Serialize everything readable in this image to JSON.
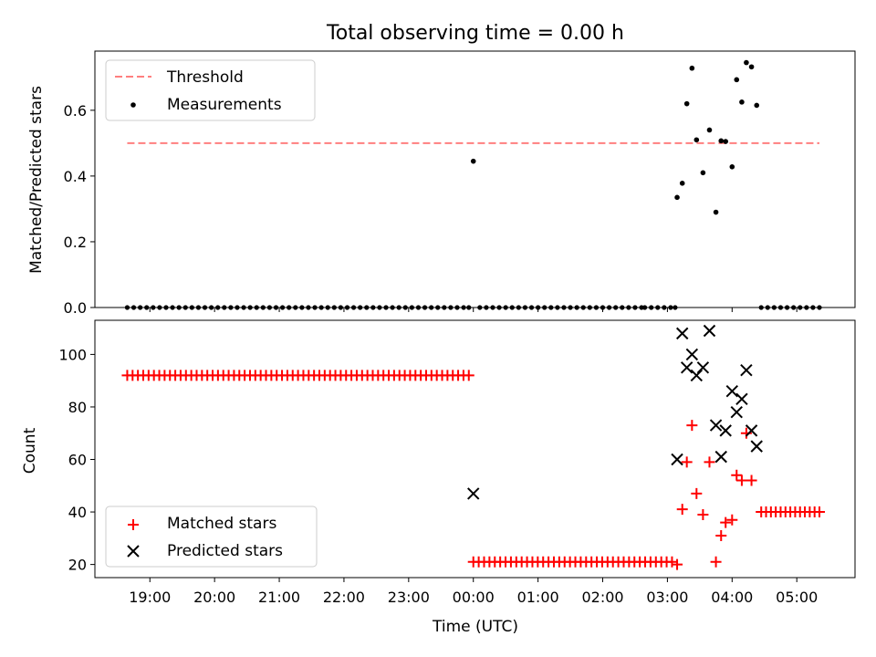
{
  "chart_data": [
    {
      "type": "scatter",
      "title": "Total observing time = 0.00 h",
      "xlabel": "",
      "ylabel": "Matched/Predicted stars",
      "xlim": [
        18.15,
        29.9
      ],
      "ylim": [
        0,
        0.78
      ],
      "yticks": [
        0.0,
        0.2,
        0.4,
        0.6
      ],
      "ytick_labels": [
        "0.0",
        "0.2",
        "0.4",
        "0.6"
      ],
      "legend_position": "upper left",
      "threshold": {
        "name": "Threshold",
        "value": 0.5,
        "x_start": 18.65,
        "x_end": 29.35,
        "color": "#ff7f7f"
      },
      "series": [
        {
          "name": "Measurements",
          "color": "#000000",
          "marker": "dot",
          "zero_x": [
            18.65,
            18.75,
            18.85,
            18.95,
            19.05,
            19.15,
            19.25,
            19.35,
            19.45,
            19.55,
            19.65,
            19.75,
            19.85,
            19.95,
            20.05,
            20.15,
            20.25,
            20.35,
            20.45,
            20.55,
            20.65,
            20.75,
            20.85,
            20.95,
            21.05,
            21.15,
            21.25,
            21.35,
            21.45,
            21.55,
            21.65,
            21.75,
            21.85,
            21.95,
            22.05,
            22.15,
            22.25,
            22.35,
            22.45,
            22.55,
            22.65,
            22.75,
            22.85,
            22.95,
            23.05,
            23.15,
            23.25,
            23.35,
            23.45,
            23.55,
            23.65,
            23.75,
            23.85,
            23.93,
            24.1,
            24.2,
            24.3,
            24.4,
            24.5,
            24.6,
            24.7,
            24.8,
            24.9,
            25.0,
            25.1,
            25.2,
            25.3,
            25.4,
            25.5,
            25.6,
            25.7,
            25.8,
            25.9,
            26.0,
            26.1,
            26.2,
            26.3,
            26.4,
            26.5,
            26.6,
            26.65,
            26.75,
            26.85,
            26.95,
            27.05,
            27.12,
            28.45,
            28.55,
            28.65,
            28.75,
            28.85,
            28.95,
            29.05,
            29.15,
            29.25,
            29.35
          ],
          "x": [
            24.0,
            27.15,
            27.23,
            27.3,
            27.38,
            27.45,
            27.55,
            27.65,
            27.75,
            27.83,
            27.9,
            28.0,
            28.07,
            28.15,
            28.22,
            28.3,
            28.38
          ],
          "y": [
            0.445,
            0.335,
            0.378,
            0.62,
            0.728,
            0.51,
            0.41,
            0.54,
            0.29,
            0.507,
            0.505,
            0.428,
            0.693,
            0.625,
            0.745,
            0.732,
            0.615
          ]
        }
      ]
    },
    {
      "type": "scatter",
      "xlabel": "Time (UTC)",
      "ylabel": "Count",
      "xlim": [
        18.15,
        29.9
      ],
      "ylim": [
        15,
        113
      ],
      "yticks": [
        20,
        40,
        60,
        80,
        100
      ],
      "ytick_labels": [
        "20",
        "40",
        "60",
        "80",
        "100"
      ],
      "xticks": [
        19,
        20,
        21,
        22,
        23,
        24,
        25,
        26,
        27,
        28,
        29
      ],
      "xtick_labels": [
        "19:00",
        "20:00",
        "21:00",
        "22:00",
        "23:00",
        "00:00",
        "01:00",
        "02:00",
        "03:00",
        "04:00",
        "05:00"
      ],
      "legend_position": "lower left",
      "series": [
        {
          "name": "Matched stars",
          "color": "#ff0000",
          "marker": "plus",
          "runs": [
            {
              "x_start": 18.65,
              "x_end": 23.93,
              "step": 0.0825,
              "y": 92
            },
            {
              "x_start": 24.0,
              "x_end": 27.12,
              "step": 0.083,
              "y": 21
            },
            {
              "x_start": 28.45,
              "x_end": 29.35,
              "step": 0.075,
              "y": 40
            }
          ],
          "x": [
            27.15,
            27.23,
            27.3,
            27.38,
            27.45,
            27.55,
            27.65,
            27.75,
            27.83,
            27.9,
            28.0,
            28.07,
            28.15,
            28.22,
            28.3
          ],
          "y": [
            20,
            41,
            59,
            73,
            47,
            39,
            59,
            21,
            31,
            36,
            37,
            54,
            52,
            70,
            52
          ]
        },
        {
          "name": "Predicted stars",
          "color": "#000000",
          "marker": "x",
          "x": [
            24.0,
            27.15,
            27.23,
            27.3,
            27.38,
            27.45,
            27.55,
            27.65,
            27.75,
            27.83,
            27.9,
            28.0,
            28.07,
            28.15,
            28.22,
            28.3,
            28.38
          ],
          "y": [
            47,
            60,
            108,
            95,
            100,
            92,
            95,
            109,
            73,
            61,
            71,
            86,
            78,
            83,
            94,
            71,
            65
          ]
        }
      ]
    }
  ]
}
